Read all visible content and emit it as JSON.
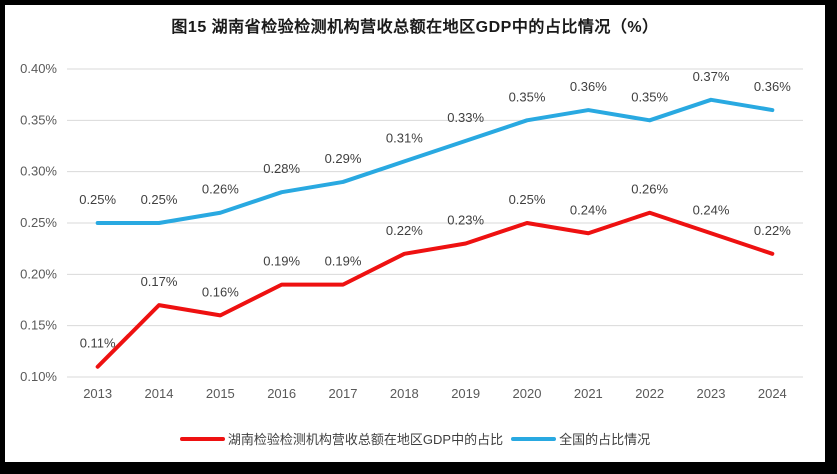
{
  "chart_data": {
    "type": "line",
    "title": "图15 湖南省检验检测机构营收总额在地区GDP中的占比情况（%）",
    "x": [
      "2013",
      "2014",
      "2015",
      "2016",
      "2017",
      "2018",
      "2019",
      "2020",
      "2021",
      "2022",
      "2023",
      "2024"
    ],
    "series": [
      {
        "name": "湖南检验检测机构营收总额在地区GDP中的占比",
        "color": "#ee1111",
        "values": [
          0.11,
          0.17,
          0.16,
          0.19,
          0.19,
          0.22,
          0.23,
          0.25,
          0.24,
          0.26,
          0.24,
          0.22
        ],
        "labels": [
          "0.11%",
          "0.17%",
          "0.16%",
          "0.19%",
          "0.19%",
          "0.22%",
          "0.23%",
          "0.25%",
          "0.24%",
          "0.26%",
          "0.24%",
          "0.22%"
        ]
      },
      {
        "name": "全国的占比情况",
        "color": "#29a9e1",
        "values": [
          0.25,
          0.25,
          0.26,
          0.28,
          0.29,
          0.31,
          0.33,
          0.35,
          0.36,
          0.35,
          0.37,
          0.36
        ],
        "labels": [
          "0.25%",
          "0.25%",
          "0.26%",
          "0.28%",
          "0.29%",
          "0.31%",
          "0.33%",
          "0.35%",
          "0.36%",
          "0.35%",
          "0.37%",
          "0.36%"
        ]
      }
    ],
    "ylim": [
      0.1,
      0.4
    ],
    "yticks": [
      0.1,
      0.15,
      0.2,
      0.25,
      0.3,
      0.35,
      0.4
    ],
    "ytick_labels": [
      "0.10%",
      "0.15%",
      "0.20%",
      "0.25%",
      "0.30%",
      "0.35%",
      "0.40%"
    ],
    "grid": true,
    "legend_position": "bottom",
    "colors": {
      "gridline": "#d9d9d9",
      "tick_text": "#595959",
      "data_label_text": "#404040",
      "plot_background": "#ffffff",
      "frame_background": "#000000"
    }
  }
}
